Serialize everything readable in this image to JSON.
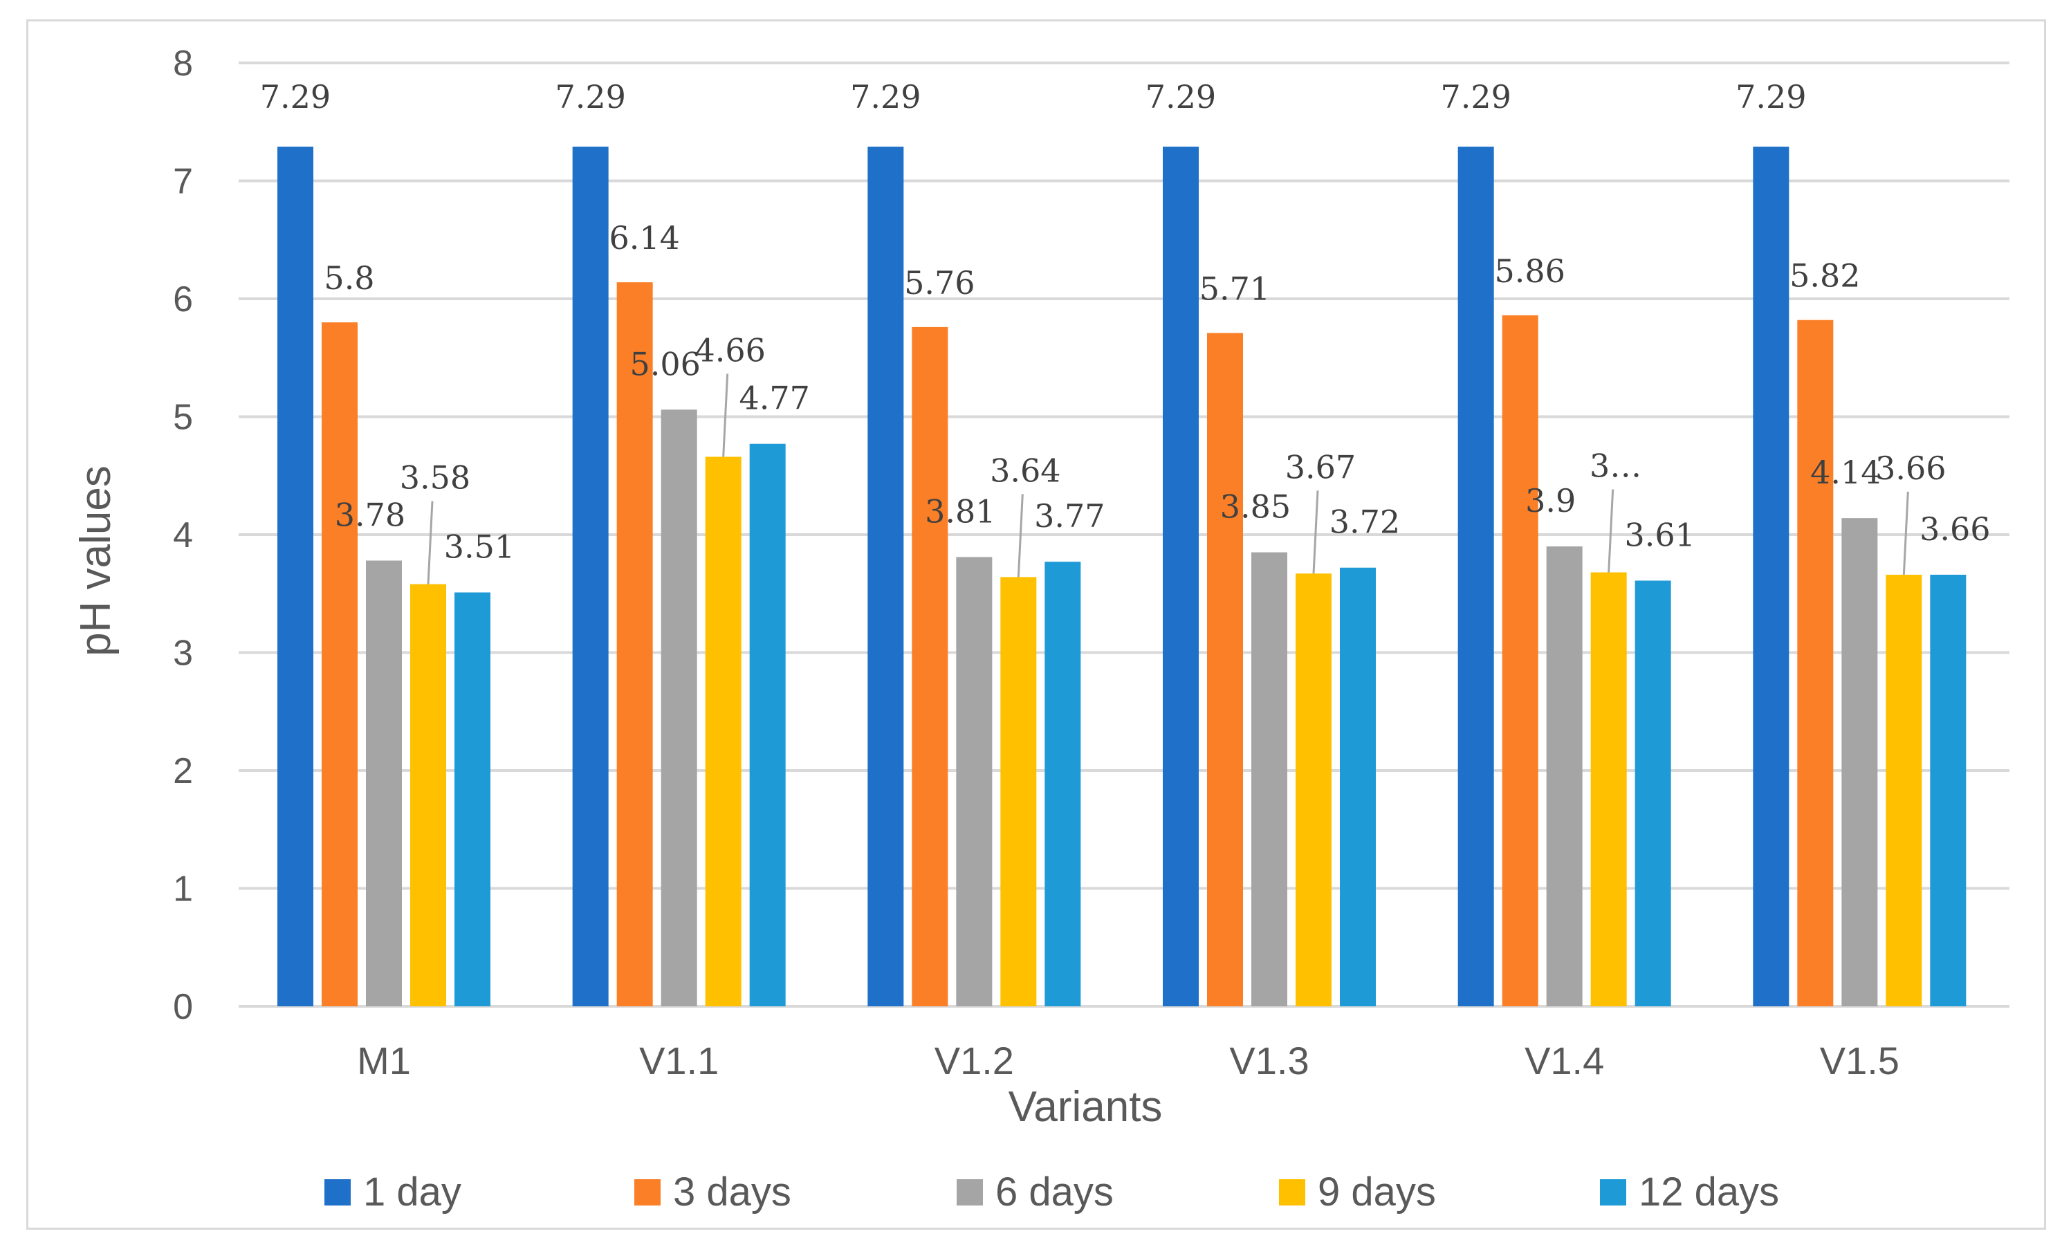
{
  "chart_data": {
    "type": "bar",
    "title": "",
    "xlabel": "Variants",
    "ylabel": "pH values",
    "ylim": [
      0,
      8
    ],
    "yticks": [
      0,
      1,
      2,
      3,
      4,
      5,
      6,
      7,
      8
    ],
    "grid": true,
    "legend_position": "bottom",
    "categories": [
      "M1",
      "V1.1",
      "V1.2",
      "V1.3",
      "V1.4",
      "V1.5"
    ],
    "series": [
      {
        "name": "1 day",
        "color": "#1f70c8",
        "values": [
          7.29,
          7.29,
          7.29,
          7.29,
          7.29,
          7.29
        ],
        "labels": [
          "7.29",
          "7.29",
          "7.29",
          "7.29",
          "7.29",
          "7.29"
        ]
      },
      {
        "name": "3 days",
        "color": "#fb7f27",
        "values": [
          5.8,
          6.14,
          5.76,
          5.71,
          5.86,
          5.82
        ],
        "labels": [
          "5.8",
          "6.14",
          "5.76",
          "5.71",
          "5.86",
          "5.82"
        ]
      },
      {
        "name": "6 days",
        "color": "#a5a5a5",
        "values": [
          3.78,
          5.06,
          3.81,
          3.85,
          3.9,
          4.14
        ],
        "labels": [
          "3.78",
          "5.06",
          "3.81",
          "3.85",
          "3.9",
          "4.14"
        ]
      },
      {
        "name": "9 days",
        "color": "#ffc000",
        "values": [
          3.58,
          4.66,
          3.64,
          3.67,
          3.68,
          3.66
        ],
        "labels": [
          "3.58",
          "4.66",
          "3.64",
          "3.67",
          "3…",
          "3.66"
        ]
      },
      {
        "name": "12 days",
        "color": "#1e9bd7",
        "values": [
          3.51,
          4.77,
          3.77,
          3.72,
          3.61,
          3.66
        ],
        "labels": [
          "3.51",
          "4.77",
          "3.77",
          "3.72",
          "3.61",
          "3.66"
        ]
      }
    ]
  }
}
